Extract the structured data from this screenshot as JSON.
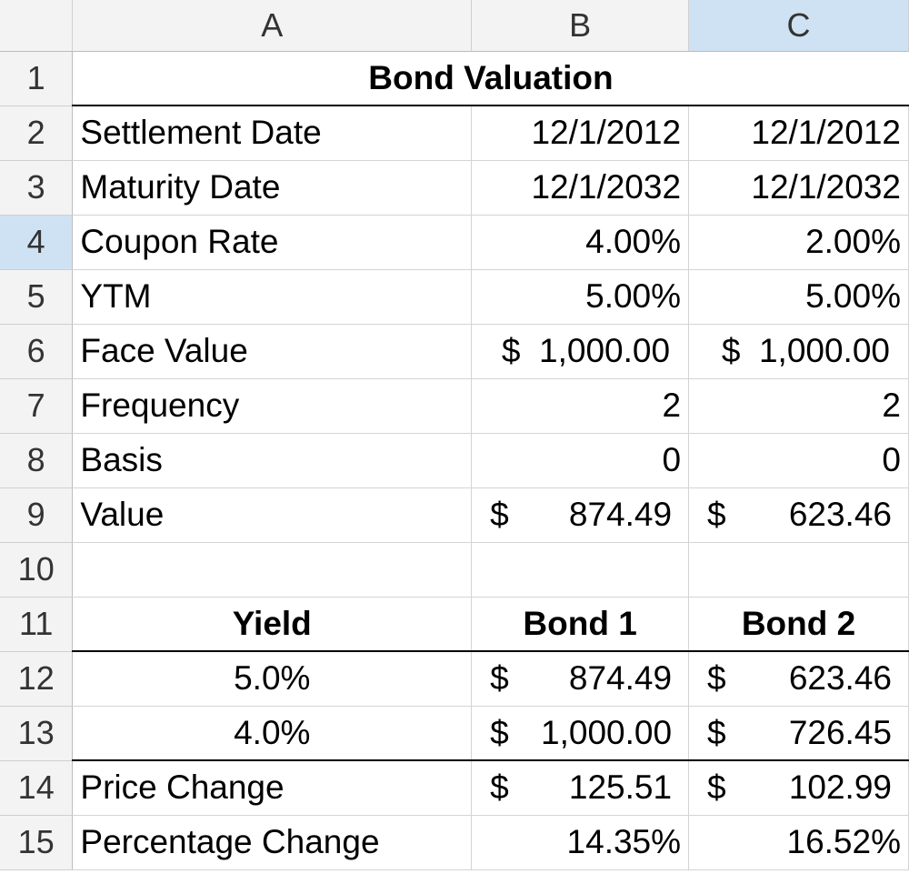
{
  "columns": [
    "A",
    "B",
    "C"
  ],
  "rows": [
    "1",
    "2",
    "3",
    "4",
    "5",
    "6",
    "7",
    "8",
    "9",
    "10",
    "11",
    "12",
    "13",
    "14",
    "15"
  ],
  "selected_cell": "C4",
  "title": "Bond Valuation",
  "inputs": [
    {
      "label": "Settlement Date",
      "b": "12/1/2012",
      "c": "12/1/2012"
    },
    {
      "label": "Maturity Date",
      "b": "12/1/2032",
      "c": "12/1/2032"
    },
    {
      "label": "Coupon Rate",
      "b": "4.00%",
      "c": "2.00%"
    },
    {
      "label": "YTM",
      "b": "5.00%",
      "c": "5.00%"
    },
    {
      "label": "Face Value",
      "b_sym": "$",
      "b": "1,000.00",
      "c_sym": "$",
      "c": "1,000.00"
    },
    {
      "label": "Frequency",
      "b": "2",
      "c": "2"
    },
    {
      "label": "Basis",
      "b": "0",
      "c": "0"
    },
    {
      "label": "Value",
      "b_sym": "$",
      "b": "874.49",
      "c_sym": "$",
      "c": "623.46"
    }
  ],
  "table_headers": {
    "a": "Yield",
    "b": "Bond 1",
    "c": "Bond 2"
  },
  "table_rows": [
    {
      "yield": "5.0%",
      "b_sym": "$",
      "b": "874.49",
      "c_sym": "$",
      "c": "623.46"
    },
    {
      "yield": "4.0%",
      "b_sym": "$",
      "b": "1,000.00",
      "c_sym": "$",
      "c": "726.45"
    }
  ],
  "price_change": {
    "label": "Price Change",
    "b_sym": "$",
    "b": "125.51",
    "c_sym": "$",
    "c": "102.99"
  },
  "percentage_change": {
    "label": "Percentage Change",
    "b": "14.35%",
    "c": "16.52%"
  }
}
